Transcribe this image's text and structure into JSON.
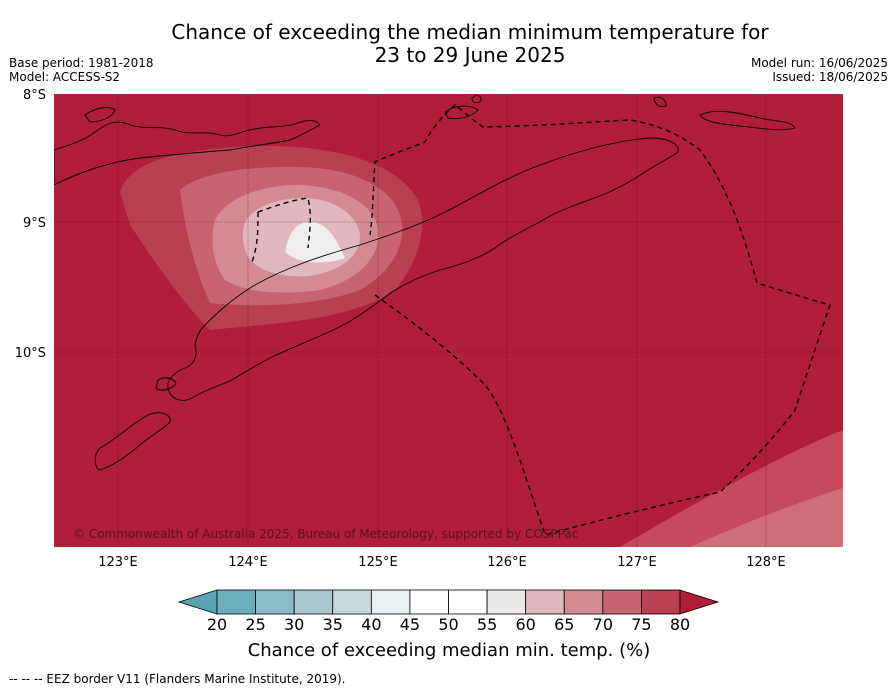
{
  "title": {
    "line1": "Chance of exceeding the median minimum temperature for",
    "line2": "23 to 29 June 2025"
  },
  "meta": {
    "base_period": "Base period: 1981-2018",
    "model": "Model: ACCESS-S2",
    "model_run": "Model run: 16/06/2025",
    "issued": "Issued: 18/06/2025"
  },
  "map": {
    "lat_labels": [
      "8°S",
      "9°S",
      "10°S"
    ],
    "lon_labels": [
      "123°E",
      "124°E",
      "125°E",
      "126°E",
      "127°E",
      "128°E"
    ],
    "copyright": "© Commonwealth of Australia 2025, Bureau of Meteorology, supported by COSPPac",
    "background_color": "#b01e3a"
  },
  "colorbar": {
    "ticks": [
      "20",
      "25",
      "30",
      "35",
      "40",
      "45",
      "50",
      "55",
      "60",
      "65",
      "70",
      "75",
      "80"
    ],
    "colors": [
      "#5aa3b2",
      "#6aaebc",
      "#8bbcc6",
      "#a9c9ce",
      "#c9d9dc",
      "#e9f0f2",
      "#ffffff",
      "#ffffff",
      "#ebe8e8",
      "#e0b7bf",
      "#d48a95",
      "#c76470",
      "#b9404f",
      "#b01e3a"
    ],
    "title": "Chance of exceeding median min. temp. (%)"
  },
  "footnote": "--  --  -- EEZ border V11 (Flanders Marine Institute, 2019)."
}
